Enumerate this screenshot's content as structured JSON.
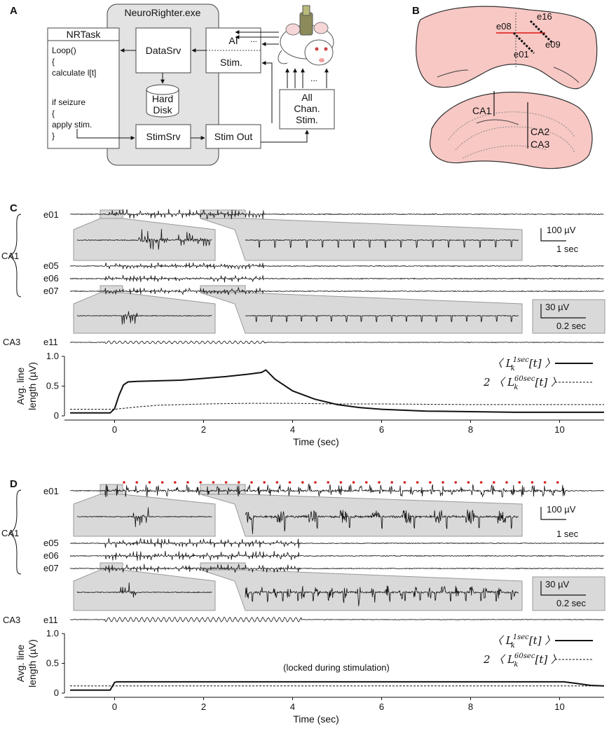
{
  "panelA": {
    "label": "A",
    "window_title": "NeuroRighter.exe",
    "nrtask": {
      "title": "NRTask",
      "code_lines": [
        "Loop()",
        "{",
        " calculate l[t]",
        "",
        "if seizure",
        "{",
        " apply stim.",
        "}"
      ]
    },
    "datasrv": "DataSrv",
    "hard_disk": [
      "Hard",
      "Disk"
    ],
    "ai": "AI",
    "stim": "Stim.",
    "stimsrv": "StimSrv",
    "stim_out": "Stim Out",
    "all_chan": [
      "All",
      "Chan.",
      "Stim."
    ],
    "dots": "..."
  },
  "panelB": {
    "label": "B",
    "electrodes": [
      "e16",
      "e08",
      "e09",
      "e01"
    ],
    "regions": [
      "CA1",
      "CA2",
      "CA3"
    ],
    "colors": {
      "tissue": "#f8c8c4",
      "electrode_line": "#e23030"
    }
  },
  "panelC": {
    "label": "C",
    "channels": [
      "e01",
      "e05",
      "e06",
      "e07",
      "e11"
    ],
    "group_ca1": "CA1",
    "group_ca3": "CA3",
    "scalebar1": {
      "amp": "100 µV",
      "time": "1 sec"
    },
    "scalebar2": {
      "amp": "30 µV",
      "time": "0.2 sec"
    },
    "legend": [
      "〈 L",
      "[t] 〉",
      "2 〈 L",
      "[t] 〉"
    ],
    "legend_sup": [
      "1sec",
      "60sec"
    ],
    "legend_sub": "k"
  },
  "panelD": {
    "label": "D",
    "channels": [
      "e01",
      "e05",
      "e06",
      "e07",
      "e11"
    ],
    "group_ca1": "CA1",
    "group_ca3": "CA3",
    "scalebar1": {
      "amp": "100 µV",
      "time": "1 sec"
    },
    "scalebar2": {
      "amp": "30 µV",
      "time": "0.2 sec"
    },
    "annotation": "(locked during stimulation)",
    "legend": [
      "〈 L",
      "[t] 〉",
      "2 〈 L",
      "[t] 〉"
    ],
    "legend_sup": [
      "1sec",
      "60sec"
    ],
    "legend_sub": "k",
    "stim_dot_color": "#d42020"
  },
  "chart_data": [
    {
      "type": "line",
      "panel": "C",
      "xlabel": "Time (sec)",
      "ylabel": "Avg. line length (µV)",
      "ylabel_lines": [
        "Avg. line",
        "length (µV)"
      ],
      "xlim": [
        -1,
        11
      ],
      "ylim": [
        0,
        1.0
      ],
      "xticks": [
        0,
        2,
        4,
        6,
        8,
        10
      ],
      "yticks": [
        0,
        0.5,
        1.0
      ],
      "ytick_labels": [
        "0",
        "0.5",
        "1.0"
      ],
      "series": [
        {
          "style": "solid",
          "x": [
            -1,
            -0.1,
            0.0,
            0.1,
            0.2,
            0.3,
            0.5,
            1.0,
            1.5,
            2.0,
            2.5,
            3.0,
            3.3,
            3.4,
            3.6,
            4.0,
            4.5,
            5.0,
            5.5,
            6.0,
            7.0,
            8.0,
            9.0,
            10.0,
            11.0
          ],
          "y": [
            0.05,
            0.05,
            0.12,
            0.35,
            0.52,
            0.57,
            0.58,
            0.59,
            0.6,
            0.63,
            0.66,
            0.7,
            0.73,
            0.77,
            0.62,
            0.42,
            0.28,
            0.19,
            0.14,
            0.11,
            0.08,
            0.07,
            0.06,
            0.06,
            0.06
          ]
        },
        {
          "style": "dashed",
          "x": [
            -1,
            0.0,
            0.5,
            1.0,
            2.0,
            3.0,
            4.0,
            5.0,
            6.0,
            8.0,
            10.0,
            11.0
          ],
          "y": [
            0.11,
            0.11,
            0.15,
            0.18,
            0.2,
            0.21,
            0.21,
            0.2,
            0.2,
            0.19,
            0.19,
            0.19
          ]
        }
      ]
    },
    {
      "type": "line",
      "panel": "D",
      "xlabel": "Time (sec)",
      "ylabel": "Avg. line length (µV)",
      "ylabel_lines": [
        "Avg. line",
        "length (µV)"
      ],
      "xlim": [
        -1,
        11
      ],
      "ylim": [
        0,
        1.0
      ],
      "xticks": [
        0,
        2,
        4,
        6,
        8,
        10
      ],
      "yticks": [
        0,
        0.5,
        1.0
      ],
      "ytick_labels": [
        "0",
        "0.5",
        "1.0"
      ],
      "series": [
        {
          "style": "solid",
          "x": [
            -1,
            -0.1,
            0.0,
            0.05,
            10.1,
            10.4,
            10.7,
            11.0
          ],
          "y": [
            0.05,
            0.05,
            0.18,
            0.19,
            0.19,
            0.16,
            0.13,
            0.12
          ]
        },
        {
          "style": "dashed",
          "x": [
            -1,
            0.0,
            11.0
          ],
          "y": [
            0.12,
            0.12,
            0.12
          ]
        }
      ]
    }
  ]
}
